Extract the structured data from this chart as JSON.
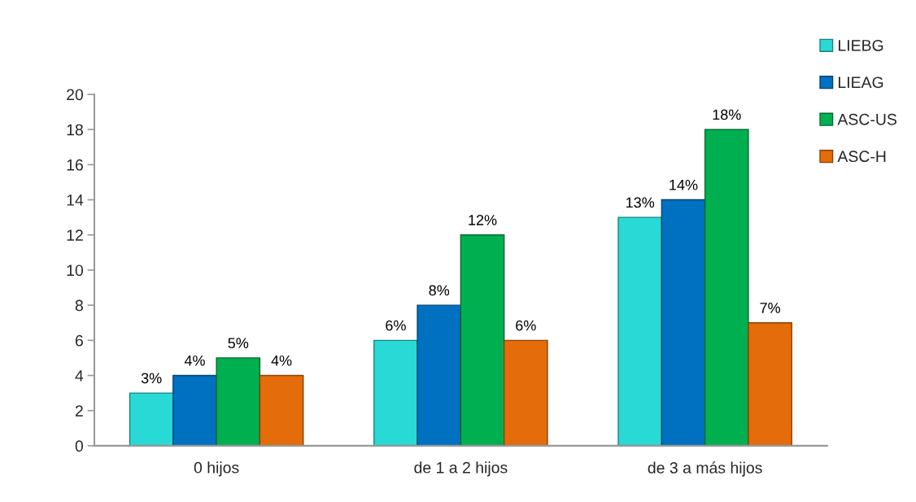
{
  "chart_data": {
    "type": "bar",
    "categories": [
      "0 hijos",
      "de 1 a 2 hijos",
      "de 3 a más hijos"
    ],
    "series": [
      {
        "name": "LIEBG",
        "color": "#29d9d5",
        "values": [
          3,
          6,
          13
        ],
        "value_labels": [
          "3%",
          "6%",
          "13%"
        ]
      },
      {
        "name": "LIEAG",
        "color": "#0070c0",
        "values": [
          4,
          8,
          14
        ],
        "value_labels": [
          "4%",
          "8%",
          "14%"
        ]
      },
      {
        "name": "ASC-US",
        "color": "#00b050",
        "values": [
          5,
          12,
          18
        ],
        "value_labels": [
          "5%",
          "12%",
          "18%"
        ]
      },
      {
        "name": "ASC-H",
        "color": "#e46c0a",
        "values": [
          4,
          6,
          7
        ],
        "value_labels": [
          "4%",
          "6%",
          "7%"
        ]
      }
    ],
    "ylim": [
      0,
      20
    ],
    "yticks": [
      0,
      2,
      4,
      6,
      8,
      10,
      12,
      14,
      16,
      18,
      20
    ],
    "grid": false,
    "legend": "top right"
  }
}
